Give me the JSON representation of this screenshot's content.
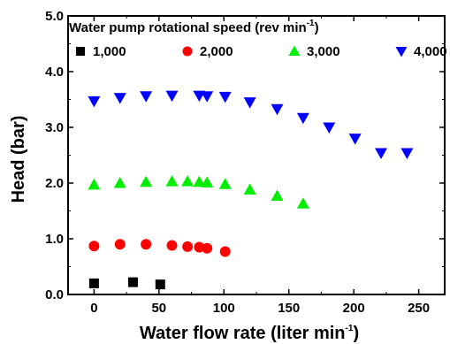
{
  "chart_data": {
    "type": "scatter",
    "xlabel": "Water flow rate (liter min",
    "xlabel_sup": "-1",
    "xlabel_tail": ")",
    "ylabel": "Head (bar)",
    "xlim": [
      -20,
      270
    ],
    "ylim": [
      0,
      5.0
    ],
    "x_ticks": [
      0,
      50,
      100,
      150,
      200,
      250
    ],
    "x_tick_labels": [
      "0",
      "50",
      "100",
      "150",
      "200",
      "250"
    ],
    "y_ticks": [
      0,
      1,
      2,
      3,
      4,
      5
    ],
    "y_tick_labels": [
      "0.0",
      "1.0",
      "2.0",
      "3.0",
      "4.0",
      "5.0"
    ],
    "grid": false,
    "legend": {
      "placement": "top",
      "title": "Water pump rotational speed (rev min",
      "title_sup": "-1",
      "title_tail": ")"
    },
    "series": [
      {
        "name": "1,000",
        "marker": "square",
        "color": "#000000",
        "points": [
          [
            0,
            0.2
          ],
          [
            30,
            0.22
          ],
          [
            51,
            0.18
          ]
        ]
      },
      {
        "name": "2,000",
        "marker": "circle",
        "color": "#ff0000",
        "points": [
          [
            0,
            0.87
          ],
          [
            20,
            0.9
          ],
          [
            40,
            0.9
          ],
          [
            60,
            0.88
          ],
          [
            72,
            0.86
          ],
          [
            81,
            0.85
          ],
          [
            87,
            0.83
          ],
          [
            101,
            0.77
          ]
        ]
      },
      {
        "name": "3,000",
        "marker": "triangle-up",
        "color": "#00ee00",
        "points": [
          [
            0,
            1.97
          ],
          [
            20,
            2.0
          ],
          [
            40,
            2.02
          ],
          [
            60,
            2.03
          ],
          [
            72,
            2.03
          ],
          [
            81,
            2.02
          ],
          [
            87,
            2.01
          ],
          [
            101,
            1.98
          ],
          [
            120,
            1.88
          ],
          [
            141,
            1.77
          ],
          [
            161,
            1.63
          ]
        ]
      },
      {
        "name": "4,000",
        "marker": "triangle-down",
        "color": "#0000ff",
        "points": [
          [
            0,
            3.47
          ],
          [
            20,
            3.53
          ],
          [
            40,
            3.56
          ],
          [
            60,
            3.57
          ],
          [
            81,
            3.57
          ],
          [
            87,
            3.56
          ],
          [
            101,
            3.55
          ],
          [
            120,
            3.45
          ],
          [
            141,
            3.33
          ],
          [
            161,
            3.17
          ],
          [
            181,
            3.0
          ],
          [
            201,
            2.8
          ],
          [
            221,
            2.54
          ],
          [
            241,
            2.54
          ]
        ]
      }
    ]
  }
}
